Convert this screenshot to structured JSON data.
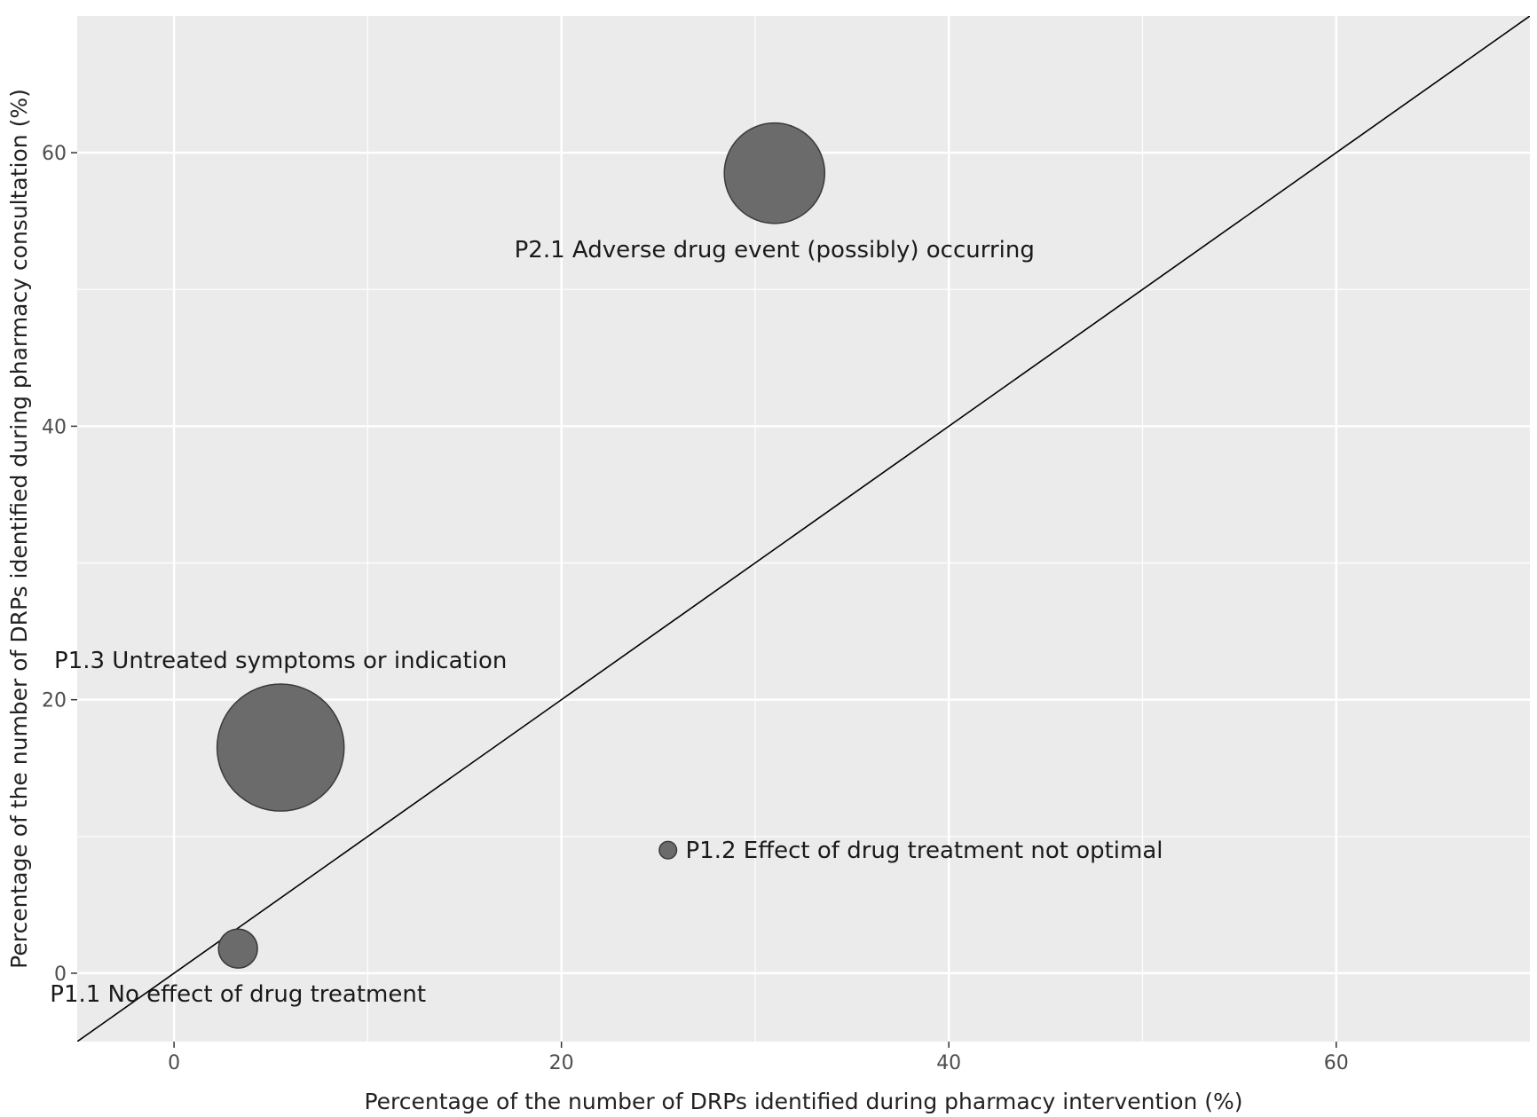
{
  "chart_data": {
    "type": "scatter",
    "title": "",
    "xlabel": "Percentage of the number of DRPs identified during pharmacy intervention (%)",
    "ylabel": "Percentage of the number of DRPs identified during pharmacy consultation (%)",
    "xlim": [
      -5,
      70
    ],
    "ylim": [
      -5,
      70
    ],
    "x_ticks": [
      0,
      20,
      40,
      60
    ],
    "y_ticks": [
      0,
      20,
      40,
      60
    ],
    "x_tick_labels": [
      "0",
      "20",
      "40",
      "60"
    ],
    "y_tick_labels": [
      "0",
      "20",
      "40",
      "60"
    ],
    "grid": true,
    "reference_line": {
      "type": "identity",
      "slope": 1,
      "intercept": 0
    },
    "colors": {
      "panel": "#ebebeb",
      "grid": "#ffffff",
      "point": "#6b6b6b",
      "point_stroke": "#3a3a3a",
      "line": "#000000"
    },
    "points": [
      {
        "label": "P2.1 Adverse drug event (possibly) occurring",
        "x": 31,
        "y": 58.5,
        "size": 2,
        "label_pos": "below"
      },
      {
        "label": "P1.3 Untreated symptoms or indication",
        "x": 5.5,
        "y": 16.5,
        "size": 3.2,
        "label_pos": "above"
      },
      {
        "label": "P1.2 Effect of drug treatment not optimal",
        "x": 25.5,
        "y": 9,
        "size": 0.06,
        "label_pos": "right"
      },
      {
        "label": "P1.1 No effect of drug treatment",
        "x": 3.3,
        "y": 1.8,
        "size": 0.3,
        "label_pos": "below"
      }
    ]
  }
}
